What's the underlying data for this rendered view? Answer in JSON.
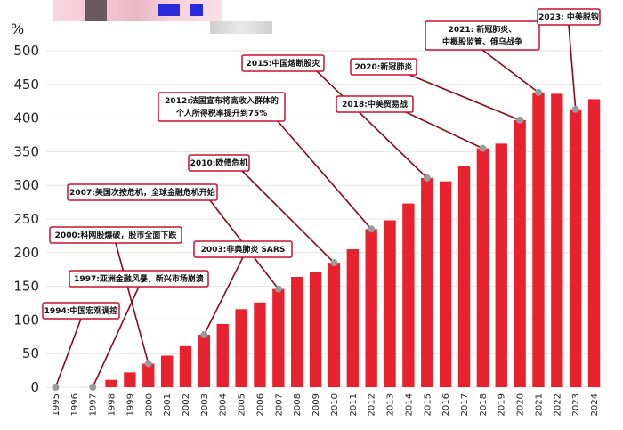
{
  "chart_data": {
    "type": "bar",
    "ylabel": "%",
    "ylim": [
      0,
      500
    ],
    "yticks": [
      0,
      50,
      100,
      150,
      200,
      250,
      300,
      350,
      400,
      450,
      500
    ],
    "categories": [
      "1995",
      "1996",
      "1997",
      "1998",
      "1999",
      "2000",
      "2001",
      "2002",
      "2003",
      "2004",
      "2005",
      "2006",
      "2007",
      "2008",
      "2009",
      "2010",
      "2011",
      "2012",
      "2013",
      "2014",
      "2015",
      "2016",
      "2017",
      "2018",
      "2019",
      "2020",
      "2021",
      "2022",
      "2023",
      "2024"
    ],
    "values": [
      0,
      0,
      0,
      11,
      22,
      35,
      47,
      61,
      78,
      94,
      116,
      126,
      146,
      164,
      171,
      185,
      205,
      235,
      248,
      273,
      311,
      306,
      328,
      355,
      362,
      397,
      438,
      436,
      413,
      428
    ],
    "bar_color": "#e8212e",
    "annotations": [
      {
        "year": "1995",
        "value": 0,
        "text": [
          "1994:中国宏观调控"
        ]
      },
      {
        "year": "1997",
        "value": 0,
        "text": [
          "1997:亚洲金融风暴，新兴市场崩溃"
        ]
      },
      {
        "year": "2000",
        "value": 35,
        "text": [
          "2000:科网股爆破，股市全面下跌"
        ]
      },
      {
        "year": "2003",
        "value": 78,
        "text": [
          "2003:非典肺炎 SARS"
        ]
      },
      {
        "year": "2007",
        "value": 146,
        "text": [
          "2007:美国次按危机，全球金融危机开始"
        ]
      },
      {
        "year": "2010",
        "value": 185,
        "text": [
          "2010:欧债危机"
        ]
      },
      {
        "year": "2012",
        "value": 235,
        "text": [
          "2012:法国宣布将高收入群体的",
          "个人所得税率提升到75%"
        ]
      },
      {
        "year": "2015",
        "value": 311,
        "text": [
          "2015:中国熔断股灾"
        ]
      },
      {
        "year": "2018",
        "value": 355,
        "text": [
          "2018:中美贸易战"
        ]
      },
      {
        "year": "2020",
        "value": 397,
        "text": [
          "2020:新冠肺炎"
        ]
      },
      {
        "year": "2021",
        "value": 438,
        "text": [
          "2021: 新冠肺炎、",
          "中概股监管、俄乌战争"
        ]
      },
      {
        "year": "2023",
        "value": 413,
        "text": [
          "2023: 中美脱钩"
        ]
      }
    ]
  }
}
